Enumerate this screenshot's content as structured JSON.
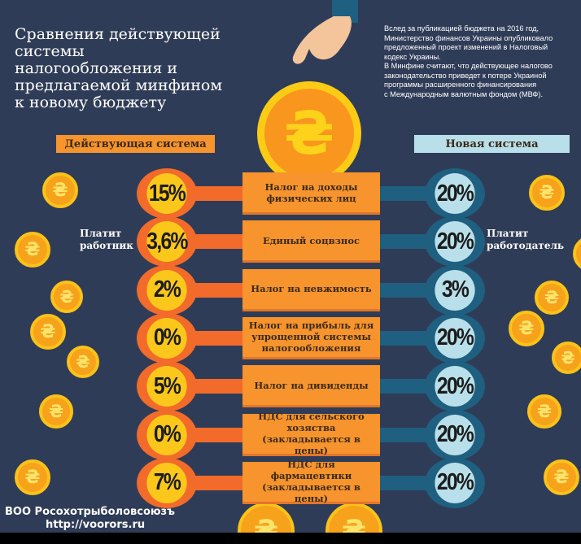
{
  "title": "Сравнения действующей системы налогообложения и предлагаемой минфином к новому бюджету",
  "intro": [
    "Вслед за публикацией бюджета на 2016 год,",
    "Министерство финансов Украины опубликовало",
    "предложенный проект изменений в Налоговый",
    "кодекс Украины.",
    "В Минфине считают, что действующее налогово",
    "законодательство приведет к потере Украиной",
    "программы расширенного финансирования",
    "с Международным валютным фондом (МВФ)."
  ],
  "headers": {
    "current": "Действующая система",
    "new": "Новая система"
  },
  "side_labels": {
    "left": [
      "Платит",
      "работник"
    ],
    "right": [
      "Платит",
      "работодатель"
    ]
  },
  "currency_symbol": "₴",
  "rows": [
    {
      "label": "Налог на доходы физических лиц",
      "current": "15%",
      "new": "20%"
    },
    {
      "label": "Единый соцвзнос",
      "current": "3,6%",
      "new": "20%"
    },
    {
      "label": "Налог на невжимость",
      "current": "2%",
      "new": "3%"
    },
    {
      "label": "Налог на прибыль для упрощенной системы налогообложения",
      "current": "0%",
      "new": "20%"
    },
    {
      "label": "Налог на дивиденды",
      "current": "5%",
      "new": "20%"
    },
    {
      "label": "НДС для сельского хозяства (закладывается в цены)",
      "current": "0%",
      "new": "20%"
    },
    {
      "label": "НДС для фармацевтики (закладывается в цены)",
      "current": "7%",
      "new": "20%"
    }
  ],
  "watermark": {
    "org": "ВОО Росохотрыболовсоюзъ",
    "url": "http://voorors.ru"
  },
  "colors": {
    "background": "#2f3c57",
    "current": "#f7942e",
    "new": "#b9e0ea",
    "coin": "#fcc71b"
  }
}
